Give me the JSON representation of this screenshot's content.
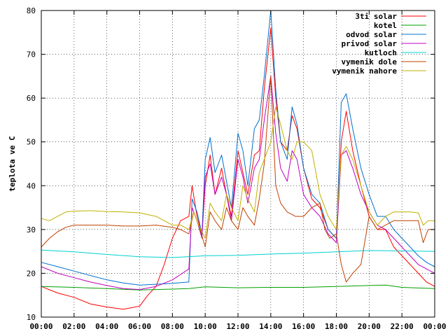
{
  "chart_data": {
    "type": "line",
    "title": "",
    "xlabel": "",
    "ylabel": "teplota ve C",
    "xlim": [
      0,
      24
    ],
    "ylim": [
      10,
      80
    ],
    "x_ticks": [
      "00:00",
      "02:00",
      "04:00",
      "06:00",
      "08:00",
      "10:00",
      "12:00",
      "14:00",
      "16:00",
      "18:00",
      "20:00",
      "22:00",
      "00:00"
    ],
    "y_ticks": [
      10,
      20,
      30,
      40,
      50,
      60,
      70,
      80
    ],
    "grid": true,
    "legend_position": "top-right",
    "series": [
      {
        "name": "3ti solar",
        "color": "#ff0000",
        "x": [
          0,
          1,
          2,
          3,
          4,
          5,
          6,
          6.5,
          7,
          7.5,
          8,
          8.5,
          9,
          9.2,
          9.5,
          9.8,
          10,
          10.3,
          10.6,
          11,
          11.3,
          11.6,
          12,
          12.3,
          12.6,
          13,
          13.3,
          13.6,
          14,
          14.3,
          14.6,
          15,
          15.3,
          15.6,
          16,
          16.5,
          17,
          17.5,
          18,
          18.3,
          18.6,
          19,
          19.5,
          20,
          20.5,
          21,
          21.5,
          22,
          22.5,
          23,
          23.5,
          24
        ],
        "values": [
          17,
          15.5,
          14.5,
          13,
          12.3,
          11.8,
          12.5,
          15,
          17,
          22,
          28,
          32,
          33,
          40,
          33,
          29,
          40,
          47,
          38,
          44,
          38,
          33,
          48,
          43,
          38,
          47,
          48,
          62,
          76,
          60,
          50,
          48,
          56,
          53,
          44,
          37,
          35,
          30,
          28,
          50,
          57,
          48,
          40,
          33,
          30,
          30,
          26,
          24,
          22,
          20,
          18,
          17
        ]
      },
      {
        "name": "kotel",
        "color": "#00a000",
        "x": [
          0,
          2,
          4,
          6,
          8,
          9,
          10,
          12,
          14,
          16,
          18,
          20,
          21,
          22,
          24
        ],
        "values": [
          17,
          16.8,
          16.5,
          16.2,
          16.4,
          16.5,
          16.9,
          16.7,
          16.8,
          16.8,
          17,
          17.2,
          17.3,
          16.8,
          16.5
        ]
      },
      {
        "name": "odvod solar",
        "color": "#0070d0",
        "x": [
          0,
          1,
          2,
          3,
          4,
          5,
          6,
          7,
          8,
          9,
          9.2,
          9.5,
          9.8,
          10,
          10.3,
          10.6,
          11,
          11.3,
          11.6,
          12,
          12.3,
          12.6,
          13,
          13.3,
          13.6,
          14,
          14.3,
          14.6,
          15,
          15.3,
          15.6,
          16,
          16.5,
          17,
          17.5,
          18,
          18.3,
          18.6,
          19,
          19.5,
          20,
          20.5,
          21,
          21.5,
          22,
          22.5,
          23,
          23.5,
          24
        ],
        "values": [
          22.5,
          21.5,
          20.5,
          19.5,
          18.5,
          17.8,
          17.3,
          17.5,
          17.7,
          18,
          37,
          34,
          29,
          46,
          51,
          43,
          47,
          41,
          35,
          52,
          48,
          40,
          53,
          55,
          65,
          80,
          62,
          50,
          46,
          58,
          54,
          44,
          38,
          36,
          30,
          28,
          59,
          61,
          53,
          44,
          38,
          33,
          33,
          30,
          28,
          26,
          24,
          22.5,
          21.5
        ]
      },
      {
        "name": "privod solar",
        "color": "#c000c0",
        "x": [
          0,
          1,
          2,
          3,
          4,
          5,
          6,
          7,
          8,
          9,
          9.2,
          9.5,
          9.8,
          10,
          10.3,
          10.6,
          11,
          11.3,
          11.6,
          12,
          12.3,
          12.6,
          13,
          13.3,
          13.6,
          14,
          14.3,
          14.6,
          15,
          15.3,
          15.6,
          16,
          16.5,
          17,
          17.5,
          18,
          18.3,
          18.6,
          19,
          19.5,
          20,
          20.5,
          21,
          21.5,
          22,
          22.5,
          23,
          23.5,
          24
        ],
        "values": [
          21.5,
          20,
          19,
          18,
          17.2,
          16.5,
          16.3,
          17,
          18.5,
          21,
          35,
          32,
          28,
          42,
          45,
          38,
          42,
          38,
          32,
          46,
          42,
          36,
          44,
          46,
          55,
          65,
          52,
          44,
          41,
          48,
          46,
          38,
          35,
          33,
          29,
          27,
          47,
          48,
          44,
          38,
          34,
          31,
          30,
          28,
          26,
          24,
          22,
          21,
          20
        ]
      },
      {
        "name": "kutloch",
        "color": "#00d0d0",
        "x": [
          0,
          2,
          4,
          6,
          8,
          10,
          12,
          14,
          16,
          18,
          20,
          22,
          24
        ],
        "values": [
          25.3,
          24.9,
          24.3,
          23.8,
          23.6,
          24,
          24.1,
          24.4,
          24.6,
          24.9,
          25.2,
          25.1,
          25
        ]
      },
      {
        "name": "vymenik dole",
        "color": "#c04000",
        "x": [
          0,
          0.5,
          1,
          1.5,
          2,
          3,
          4,
          5,
          6,
          7,
          8,
          8.5,
          9,
          9.3,
          9.6,
          10,
          10.3,
          10.6,
          11,
          11.3,
          11.6,
          12,
          12.3,
          12.6,
          13,
          13.3,
          13.6,
          14,
          14.3,
          14.6,
          15,
          15.5,
          16,
          16.5,
          17,
          17.3,
          17.6,
          18,
          18.3,
          18.6,
          19,
          19.5,
          20,
          20.5,
          21,
          21.5,
          22,
          22.5,
          23,
          23.3,
          23.6,
          24
        ],
        "values": [
          26,
          28,
          29.5,
          30.5,
          31,
          31,
          31,
          30.8,
          30.8,
          31,
          30.5,
          30,
          29,
          34,
          31,
          26,
          34,
          32,
          30,
          35,
          32,
          30,
          35,
          33,
          31,
          37,
          45,
          65,
          40,
          36,
          34,
          33,
          33,
          35,
          36,
          30,
          28,
          29,
          22,
          18,
          20,
          22,
          33,
          30,
          31,
          32,
          32,
          32,
          32,
          27,
          30,
          30
        ]
      },
      {
        "name": "vymenik nahore",
        "color": "#c0b000",
        "x": [
          0,
          0.5,
          1,
          1.5,
          2,
          3,
          4,
          5,
          6,
          7,
          8,
          8.5,
          9,
          9.3,
          9.6,
          10,
          10.3,
          10.6,
          11,
          11.3,
          11.6,
          12,
          12.3,
          12.6,
          13,
          13.3,
          13.6,
          14,
          14.3,
          14.6,
          15,
          15.3,
          15.6,
          16,
          16.5,
          17,
          17.5,
          18,
          18.3,
          18.6,
          19,
          19.5,
          20,
          20.5,
          21,
          21.5,
          22,
          22.5,
          23,
          23.3,
          23.6,
          24
        ],
        "values": [
          32.5,
          32,
          33,
          34,
          34.2,
          34.3,
          34.1,
          34,
          33.8,
          33,
          31,
          31,
          30,
          34,
          31,
          28,
          36,
          34,
          32,
          38,
          35,
          32,
          40,
          37,
          34,
          43,
          46,
          50,
          58,
          54,
          48,
          46,
          50,
          50,
          48,
          38,
          33,
          30,
          47,
          49,
          46,
          40,
          34,
          31,
          33,
          34,
          34,
          34,
          33.8,
          31,
          32,
          32
        ]
      }
    ]
  }
}
